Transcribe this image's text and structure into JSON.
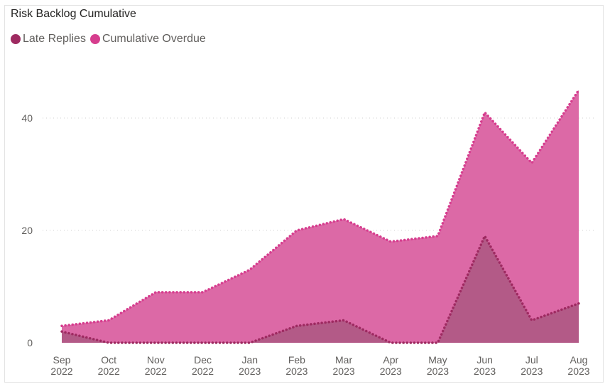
{
  "chart_data": {
    "type": "area",
    "title": "Risk Backlog Cumulative",
    "categories": [
      [
        "Sep",
        "2022"
      ],
      [
        "Oct",
        "2022"
      ],
      [
        "Nov",
        "2022"
      ],
      [
        "Dec",
        "2022"
      ],
      [
        "Jan",
        "2023"
      ],
      [
        "Feb",
        "2023"
      ],
      [
        "Mar",
        "2023"
      ],
      [
        "Apr",
        "2023"
      ],
      [
        "May",
        "2023"
      ],
      [
        "Jun",
        "2023"
      ],
      [
        "Jul",
        "2023"
      ],
      [
        "Aug",
        "2023"
      ]
    ],
    "series": [
      {
        "name": "Late Replies",
        "color": "#9e2a61",
        "fill": "#b35a87",
        "values": [
          2,
          0,
          0,
          0,
          0,
          3,
          4,
          0,
          0,
          19,
          4,
          7
        ]
      },
      {
        "name": "Cumulative Overdue",
        "color": "#d63d8e",
        "fill": "#dc69a6",
        "values": [
          3,
          4,
          9,
          9,
          13,
          20,
          22,
          18,
          19,
          41,
          32,
          45
        ]
      }
    ],
    "yticks": [
      0,
      20,
      40
    ],
    "ylim": [
      0,
      50
    ],
    "grid": true,
    "legend_position": "top-left",
    "xlabel": "",
    "ylabel": ""
  }
}
